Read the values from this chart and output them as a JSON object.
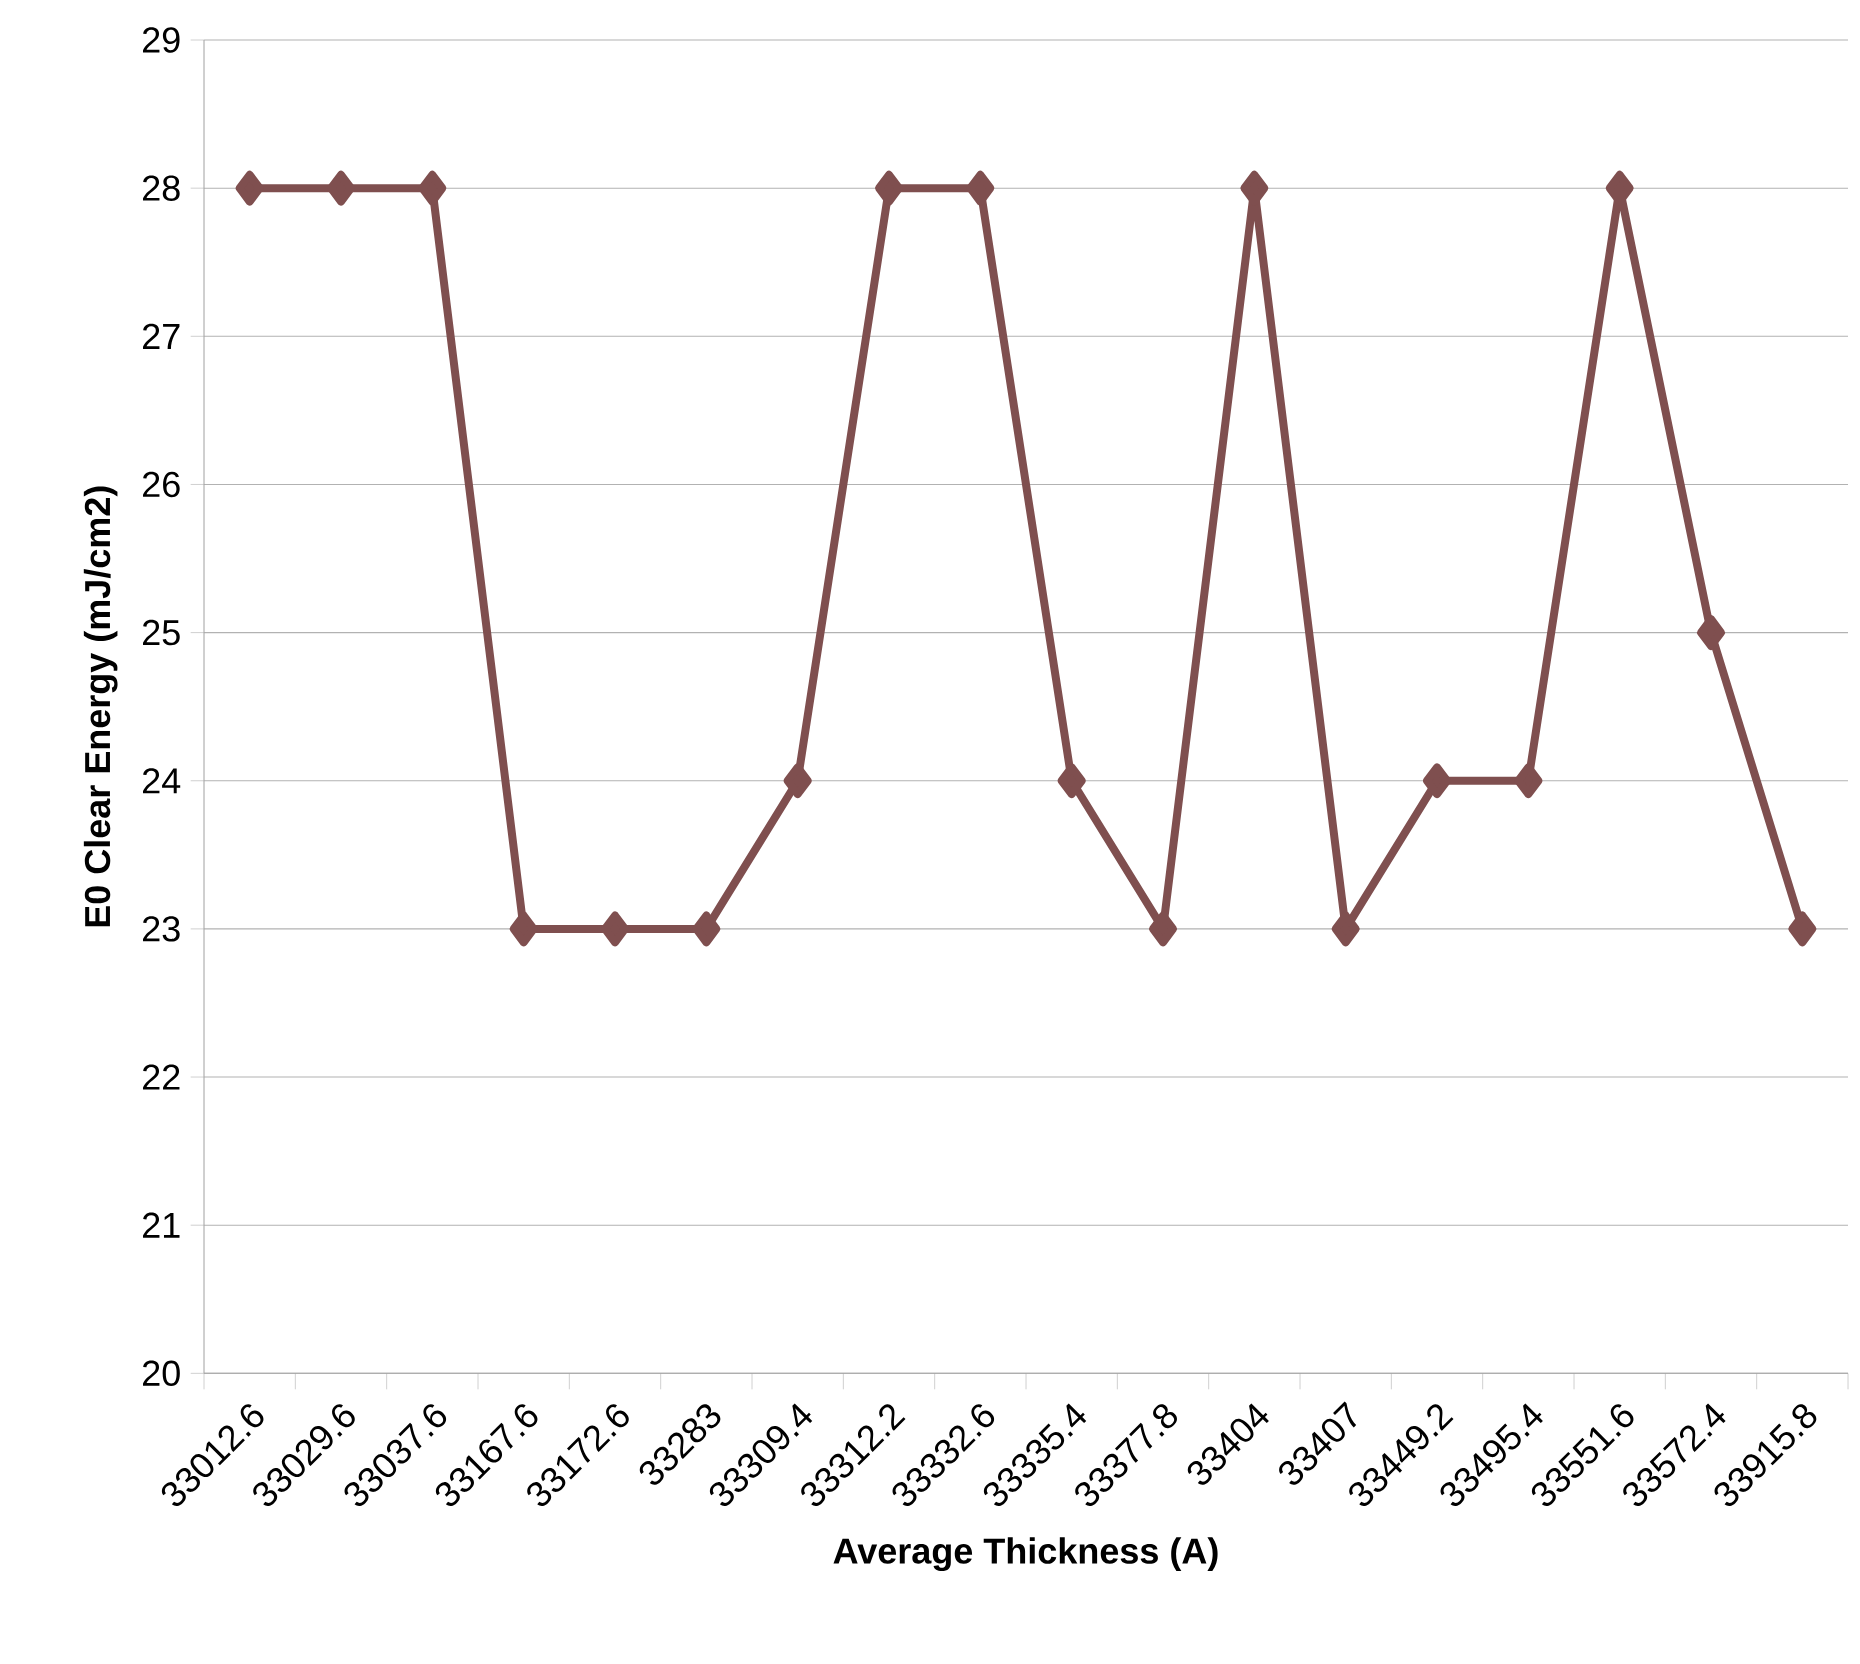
{
  "chart_data": {
    "type": "line",
    "xlabel": "Average Thickness (A)",
    "ylabel": "E0 Clear Energy (mJ/cm2)",
    "categories": [
      "33012.6",
      "33029.6",
      "33037.6",
      "33167.6",
      "33172.6",
      "33283",
      "33309.4",
      "33312.2",
      "33332.6",
      "33335.4",
      "33377.8",
      "33404",
      "33407",
      "33449.2",
      "33495.4",
      "33551.6",
      "33572.4",
      "33915.8"
    ],
    "values": [
      28,
      28,
      28,
      23,
      23,
      23,
      24,
      28,
      28,
      24,
      23,
      28,
      23,
      24,
      24,
      28,
      25,
      23
    ],
    "color": "#7f4f4f",
    "ylim": [
      20,
      29
    ],
    "yticks": [
      20,
      21,
      22,
      23,
      24,
      25,
      26,
      27,
      28,
      29
    ],
    "grid": "y",
    "marker": "diamond",
    "line_style": "solid"
  }
}
